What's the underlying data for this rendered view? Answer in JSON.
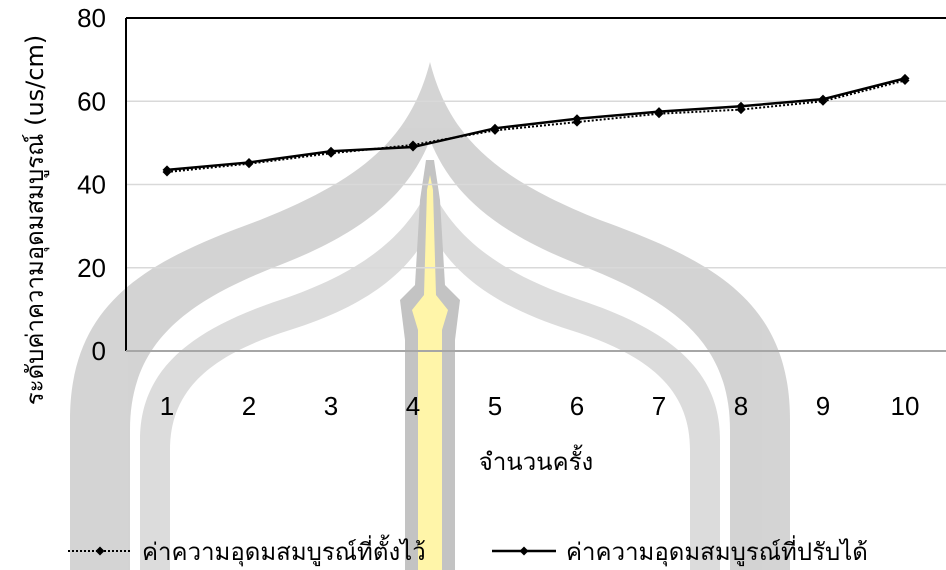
{
  "chart_data": {
    "type": "line",
    "x": [
      1,
      2,
      3,
      4,
      5,
      6,
      7,
      8,
      9,
      10
    ],
    "categories": [
      "1",
      "2",
      "3",
      "4",
      "5",
      "6",
      "7",
      "8",
      "9",
      "10"
    ],
    "series": [
      {
        "name": "ค่าความอุดมสมบูรณ์ที่ตั้งไว้",
        "values": [
          43,
          45,
          47.5,
          49.5,
          53,
          55,
          57,
          58,
          60,
          65
        ],
        "style": "dotted",
        "color": "#000000"
      },
      {
        "name": "ค่าความอุดมสมบูรณ์ที่ปรับได้",
        "values": [
          43.5,
          45.3,
          48,
          49,
          53.5,
          55.8,
          57.5,
          58.8,
          60.5,
          65.5
        ],
        "style": "solid",
        "color": "#000000"
      }
    ],
    "xlabel": "จำนวนครั้ง",
    "ylabel": "ระดับค่าความอุดมสมบูรณ์ (us/cm)",
    "ylim": [
      0,
      80
    ],
    "yticks": [
      "0",
      "20",
      "40",
      "60",
      "80"
    ],
    "grid": true,
    "legend_position": "bottom"
  },
  "colors": {
    "gridline": "#d9d9d9",
    "axis": "#000000",
    "watermark_gray": "#c8c8c8",
    "watermark_yellow": "#fff7a8"
  }
}
